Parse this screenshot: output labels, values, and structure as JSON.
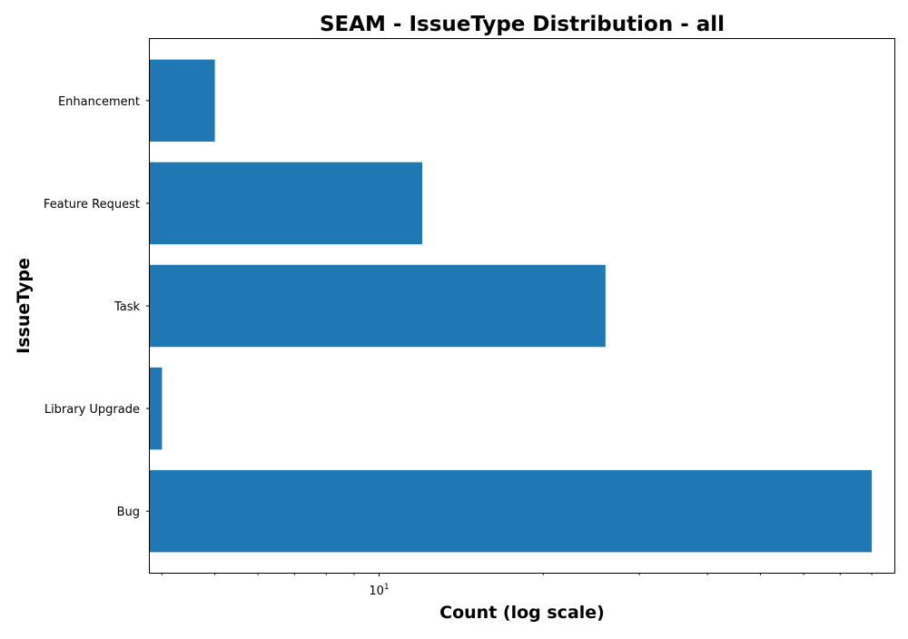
{
  "chart_data": {
    "type": "bar",
    "orientation": "horizontal",
    "title": "SEAM - IssueType Distribution - all",
    "xlabel": "Count (log scale)",
    "ylabel": "IssueType",
    "x_scale": "log",
    "xlim": [
      3.8,
      88
    ],
    "categories": [
      "Bug",
      "Library Upgrade",
      "Task",
      "Feature Request",
      "Enhancement"
    ],
    "values": [
      80,
      4,
      26,
      12,
      5
    ],
    "major_ticks": [
      {
        "value": 10,
        "base": "10",
        "exponent": "1"
      }
    ],
    "minor_ticks": [
      4,
      5,
      6,
      7,
      8,
      9,
      20,
      30,
      40,
      50,
      60,
      70,
      80
    ],
    "grid": false,
    "legend": "none",
    "colors": {
      "bar": "#1f77b4"
    }
  }
}
